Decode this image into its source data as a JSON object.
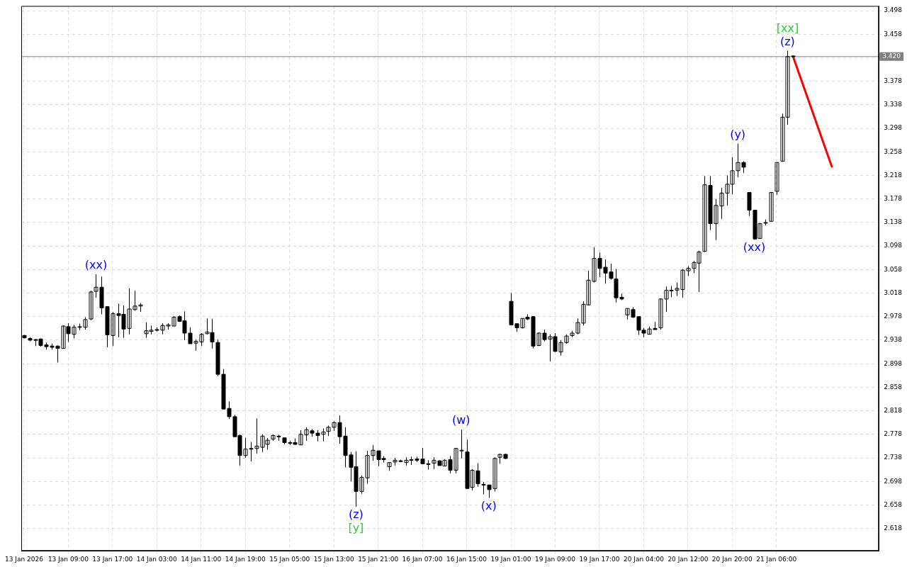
{
  "chart_data": {
    "type": "candlestick",
    "color": "#000000",
    "categories": [
      "13 Jan 2026",
      null,
      null,
      null,
      null,
      null,
      null,
      null,
      "13 Jan 09:00",
      null,
      null,
      null,
      null,
      null,
      null,
      null,
      "13 Jan 17:00",
      null,
      null,
      null,
      null,
      null,
      null,
      null,
      "14 Jan 03:00",
      null,
      null,
      null,
      null,
      null,
      null,
      null,
      "14 Jan 11:00",
      null,
      null,
      null,
      null,
      null,
      null,
      null,
      "14 Jan 19:00",
      null,
      null,
      null,
      null,
      null,
      null,
      null,
      "15 Jan 05:00",
      null,
      null,
      null,
      null,
      null,
      null,
      null,
      "15 Jan 13:00",
      null,
      null,
      null,
      null,
      null,
      null,
      null,
      "15 Jan 21:00",
      null,
      null,
      null,
      null,
      null,
      null,
      null,
      "16 Jan 07:00",
      null,
      null,
      null,
      null,
      null,
      null,
      null,
      "16 Jan 15:00",
      null,
      null,
      null,
      null,
      null,
      null,
      null,
      "19 Jan 01:00",
      null,
      null,
      null,
      null,
      null,
      null,
      null,
      "19 Jan 09:00",
      null,
      null,
      null,
      null,
      null,
      null,
      null,
      "19 Jan 17:00",
      null,
      null,
      null,
      null,
      null,
      null,
      null,
      "20 Jan 04:00",
      null,
      null,
      null,
      null,
      null,
      null,
      null,
      "20 Jan 12:00",
      null,
      null,
      null,
      null,
      null,
      null,
      null,
      "20 Jan 20:00",
      null,
      null,
      null,
      null,
      null,
      null,
      null,
      "21 Jan 06:00",
      null,
      null,
      null,
      null,
      null,
      null,
      null,
      null,
      null,
      null,
      null,
      null,
      null,
      null,
      null,
      null,
      null,
      null
    ],
    "ohlc": [
      [
        2.946,
        2.947,
        2.941,
        2.942
      ],
      [
        2.941,
        2.943,
        2.936,
        2.938
      ],
      [
        2.939,
        2.94,
        2.928,
        2.938
      ],
      [
        2.94,
        2.941,
        2.927,
        2.929
      ],
      [
        2.93,
        2.934,
        2.922,
        2.927
      ],
      [
        2.928,
        2.932,
        2.922,
        2.926
      ],
      [
        2.928,
        2.929,
        2.9,
        2.924
      ],
      [
        2.924,
        2.963,
        2.924,
        2.962
      ],
      [
        2.961,
        2.967,
        2.935,
        2.949
      ],
      [
        2.948,
        2.964,
        2.941,
        2.96
      ],
      [
        2.96,
        2.966,
        2.955,
        2.961
      ],
      [
        2.96,
        2.977,
        2.956,
        2.973
      ],
      [
        2.974,
        3.022,
        2.972,
        3.02
      ],
      [
        3.021,
        3.05,
        3.01,
        3.028
      ],
      [
        3.028,
        3.046,
        2.982,
        2.993
      ],
      [
        2.995,
        2.995,
        2.926,
        2.947
      ],
      [
        2.946,
        2.986,
        2.928,
        2.983
      ],
      [
        2.983,
        3.0,
        2.943,
        2.98
      ],
      [
        2.982,
        2.997,
        2.942,
        2.957
      ],
      [
        2.958,
        3.026,
        2.948,
        2.991
      ],
      [
        2.99,
        3.022,
        2.988,
        2.996
      ],
      [
        2.996,
        3.001,
        2.986,
        2.998
      ],
      [
        2.949,
        2.968,
        2.942,
        2.954
      ],
      [
        2.953,
        2.963,
        2.948,
        2.955
      ],
      [
        2.956,
        2.96,
        2.953,
        2.955
      ],
      [
        2.955,
        2.967,
        2.948,
        2.963
      ],
      [
        2.962,
        2.967,
        2.956,
        2.964
      ],
      [
        2.962,
        2.979,
        2.962,
        2.977
      ],
      [
        2.978,
        2.98,
        2.969,
        2.97
      ],
      [
        2.971,
        2.987,
        2.938,
        2.95
      ],
      [
        2.95,
        2.96,
        2.932,
        2.932
      ],
      [
        2.933,
        2.939,
        2.92,
        2.936
      ],
      [
        2.935,
        2.95,
        2.928,
        2.948
      ],
      [
        2.949,
        2.975,
        2.948,
        2.952
      ],
      [
        2.951,
        2.974,
        2.924,
        2.935
      ],
      [
        2.934,
        2.939,
        2.877,
        2.88
      ],
      [
        2.88,
        2.889,
        2.821,
        2.821
      ],
      [
        2.822,
        2.834,
        2.804,
        2.808
      ],
      [
        2.808,
        2.811,
        2.773,
        2.774
      ],
      [
        2.776,
        2.778,
        2.725,
        2.742
      ],
      [
        2.742,
        2.772,
        2.738,
        2.753
      ],
      [
        2.754,
        2.765,
        2.732,
        2.753
      ],
      [
        2.754,
        2.805,
        2.745,
        2.758
      ],
      [
        2.756,
        2.778,
        2.748,
        2.775
      ],
      [
        2.761,
        2.772,
        2.752,
        2.768
      ],
      [
        2.77,
        2.778,
        2.767,
        2.776
      ],
      [
        2.775,
        2.777,
        2.767,
        2.774
      ],
      [
        2.772,
        2.772,
        2.761,
        2.764
      ],
      [
        2.764,
        2.767,
        2.76,
        2.764
      ],
      [
        2.764,
        2.771,
        2.76,
        2.761
      ],
      [
        2.76,
        2.785,
        2.76,
        2.778
      ],
      [
        2.777,
        2.79,
        2.767,
        2.786
      ],
      [
        2.784,
        2.787,
        2.774,
        2.78
      ],
      [
        2.78,
        2.785,
        2.766,
        2.776
      ],
      [
        2.778,
        2.788,
        2.766,
        2.782
      ],
      [
        2.783,
        2.793,
        2.775,
        2.79
      ],
      [
        2.79,
        2.8,
        2.784,
        2.798
      ],
      [
        2.798,
        2.81,
        2.762,
        2.774
      ],
      [
        2.775,
        2.79,
        2.722,
        2.742
      ],
      [
        2.743,
        2.748,
        2.698,
        2.722
      ],
      [
        2.723,
        2.749,
        2.655,
        2.681
      ],
      [
        2.681,
        2.708,
        2.677,
        2.705
      ],
      [
        2.704,
        2.75,
        2.694,
        2.742
      ],
      [
        2.742,
        2.76,
        2.733,
        2.751
      ],
      [
        2.75,
        2.75,
        2.724,
        2.735
      ],
      [
        2.737,
        2.741,
        2.73,
        2.735
      ],
      [
        2.723,
        2.73,
        2.716,
        2.73
      ],
      [
        2.731,
        2.738,
        2.725,
        2.734
      ],
      [
        2.733,
        2.735,
        2.731,
        2.732
      ],
      [
        2.73,
        2.739,
        2.725,
        2.734
      ],
      [
        2.735,
        2.74,
        2.726,
        2.735
      ],
      [
        2.736,
        2.74,
        2.731,
        2.734
      ],
      [
        2.736,
        2.755,
        2.727,
        2.728
      ],
      [
        2.728,
        2.734,
        2.718,
        2.727
      ],
      [
        2.729,
        2.739,
        2.719,
        2.734
      ],
      [
        2.733,
        2.734,
        2.725,
        2.725
      ],
      [
        2.724,
        2.736,
        2.724,
        2.734
      ],
      [
        2.735,
        2.741,
        2.712,
        2.717
      ],
      [
        2.717,
        2.755,
        2.712,
        2.754
      ],
      [
        2.751,
        2.786,
        2.737,
        2.751
      ],
      [
        2.748,
        2.769,
        2.686,
        2.686
      ],
      [
        2.688,
        2.719,
        2.683,
        2.717
      ],
      [
        2.716,
        2.729,
        2.689,
        2.694
      ],
      [
        2.693,
        2.697,
        2.676,
        2.692
      ],
      [
        2.692,
        2.692,
        2.67,
        2.684
      ],
      [
        2.686,
        2.739,
        2.681,
        2.737
      ],
      [
        2.739,
        2.745,
        2.728,
        2.744
      ],
      [
        2.744,
        2.745,
        2.736,
        2.737
      ],
      [
        3.004,
        3.018,
        2.964,
        2.964
      ],
      [
        2.966,
        2.966,
        2.952,
        2.959
      ],
      [
        2.959,
        2.975,
        2.958,
        2.975
      ],
      [
        2.977,
        2.982,
        2.972,
        2.974
      ],
      [
        2.978,
        2.979,
        2.924,
        2.928
      ],
      [
        2.929,
        2.951,
        2.928,
        2.95
      ],
      [
        2.95,
        2.956,
        2.936,
        2.939
      ],
      [
        2.94,
        2.948,
        2.902,
        2.944
      ],
      [
        2.944,
        2.95,
        2.918,
        2.919
      ],
      [
        2.918,
        2.938,
        2.912,
        2.934
      ],
      [
        2.934,
        2.948,
        2.932,
        2.945
      ],
      [
        2.946,
        2.954,
        2.943,
        2.95
      ],
      [
        2.95,
        2.975,
        2.948,
        2.968
      ],
      [
        2.967,
        3.004,
        2.963,
        2.999
      ],
      [
        2.998,
        3.056,
        2.997,
        3.04
      ],
      [
        3.038,
        3.096,
        3.036,
        3.077
      ],
      [
        3.077,
        3.087,
        3.045,
        3.06
      ],
      [
        3.062,
        3.075,
        3.034,
        3.052
      ],
      [
        3.054,
        3.068,
        3.041,
        3.043
      ],
      [
        3.042,
        3.059,
        3.002,
        3.01
      ],
      [
        3.011,
        3.017,
        3.006,
        3.008
      ],
      [
        2.981,
        2.992,
        2.973,
        2.992
      ],
      [
        2.99,
        2.994,
        2.976,
        2.977
      ],
      [
        2.978,
        2.978,
        2.947,
        2.955
      ],
      [
        2.955,
        2.959,
        2.943,
        2.95
      ],
      [
        2.948,
        2.961,
        2.948,
        2.957
      ],
      [
        2.958,
        2.969,
        2.956,
        2.956
      ],
      [
        2.959,
        3.009,
        2.956,
        3.008
      ],
      [
        3.008,
        3.029,
        2.986,
        3.023
      ],
      [
        3.022,
        3.03,
        3.011,
        3.023
      ],
      [
        3.023,
        3.036,
        3.013,
        3.026
      ],
      [
        3.024,
        3.059,
        3.01,
        3.057
      ],
      [
        3.056,
        3.064,
        3.047,
        3.06
      ],
      [
        3.06,
        3.073,
        3.052,
        3.07
      ],
      [
        3.069,
        3.09,
        3.02,
        3.088
      ],
      [
        3.089,
        3.217,
        3.088,
        3.202
      ],
      [
        3.201,
        3.217,
        3.125,
        3.136
      ],
      [
        3.136,
        3.178,
        3.108,
        3.167
      ],
      [
        3.166,
        3.197,
        3.144,
        3.188
      ],
      [
        3.188,
        3.218,
        3.167,
        3.203
      ],
      [
        3.203,
        3.249,
        3.186,
        3.226
      ],
      [
        3.226,
        3.272,
        3.215,
        3.24
      ],
      [
        3.24,
        3.242,
        3.222,
        3.232
      ],
      [
        3.189,
        3.189,
        3.149,
        3.159
      ],
      [
        3.159,
        3.159,
        3.109,
        3.11
      ],
      [
        3.111,
        3.137,
        3.11,
        3.136
      ],
      [
        3.138,
        3.143,
        3.133,
        3.138
      ],
      [
        3.14,
        3.189,
        3.14,
        3.189
      ],
      [
        3.191,
        3.24,
        3.185,
        3.24
      ],
      [
        3.242,
        3.323,
        3.242,
        3.317
      ],
      [
        3.317,
        3.43,
        3.304,
        3.42
      ],
      [
        3.421,
        3.421,
        3.419,
        3.42
      ],
      null,
      null,
      null,
      null,
      null,
      null,
      null,
      null,
      null,
      null,
      null,
      null,
      null,
      null,
      null
    ],
    "series": [
      {
        "type": "line",
        "color": "#ff0000",
        "values": [
          null,
          null,
          null,
          null,
          null,
          null,
          null,
          null,
          null,
          null,
          null,
          null,
          null,
          null,
          null,
          null,
          null,
          null,
          null,
          null,
          null,
          null,
          null,
          null,
          null,
          null,
          null,
          null,
          null,
          null,
          null,
          null,
          null,
          null,
          null,
          null,
          null,
          null,
          null,
          null,
          null,
          null,
          null,
          null,
          null,
          null,
          null,
          null,
          null,
          null,
          null,
          null,
          null,
          null,
          null,
          null,
          null,
          null,
          null,
          null,
          null,
          null,
          null,
          null,
          null,
          null,
          null,
          null,
          null,
          null,
          null,
          null,
          null,
          null,
          null,
          null,
          null,
          null,
          null,
          null,
          null,
          null,
          null,
          null,
          null,
          null,
          null,
          null,
          null,
          null,
          null,
          null,
          null,
          null,
          null,
          null,
          null,
          null,
          null,
          null,
          null,
          null,
          null,
          null,
          null,
          null,
          null,
          null,
          null,
          null,
          null,
          null,
          null,
          null,
          null,
          null,
          null,
          null,
          null,
          null,
          null,
          null,
          null,
          null,
          null,
          null,
          null,
          null,
          null,
          null,
          null,
          null,
          null,
          null,
          null,
          null,
          null,
          null,
          null,
          3.42,
          null,
          null,
          null,
          null,
          null,
          null,
          3.233,
          null,
          null,
          null,
          null,
          null,
          null,
          null,
          null
        ]
      }
    ],
    "ylim": [
      2.58,
      3.506
    ],
    "yticks": [
      2.618,
      2.658,
      2.698,
      2.738,
      2.778,
      2.818,
      2.858,
      2.898,
      2.938,
      2.978,
      3.018,
      3.058,
      3.098,
      3.138,
      3.178,
      3.218,
      3.258,
      3.298,
      3.338,
      3.378,
      {
        "value": 3.418,
        "label": null
      },
      3.458,
      3.498
    ],
    "grid": true,
    "ref_lines": [
      {
        "axis": "y",
        "value": 3.42,
        "label": "3.420",
        "color": "#808080"
      }
    ],
    "annotations": [
      {
        "text": "(xx)",
        "y": 3.05
      },
      {
        "text": "(z)",
        "y": 2.655
      },
      {
        "text": "[y]",
        "y": 2.655
      },
      {
        "text": "(w)",
        "y": 2.786
      },
      {
        "text": "(x)",
        "y": 2.67
      },
      {
        "text": "(y)",
        "y": 3.272
      },
      {
        "text": "(xx)",
        "y": 3.109
      },
      {
        "text": "(z)",
        "y": 3.43
      },
      {
        "text": "[xx]",
        "y": 3.43
      }
    ]
  }
}
